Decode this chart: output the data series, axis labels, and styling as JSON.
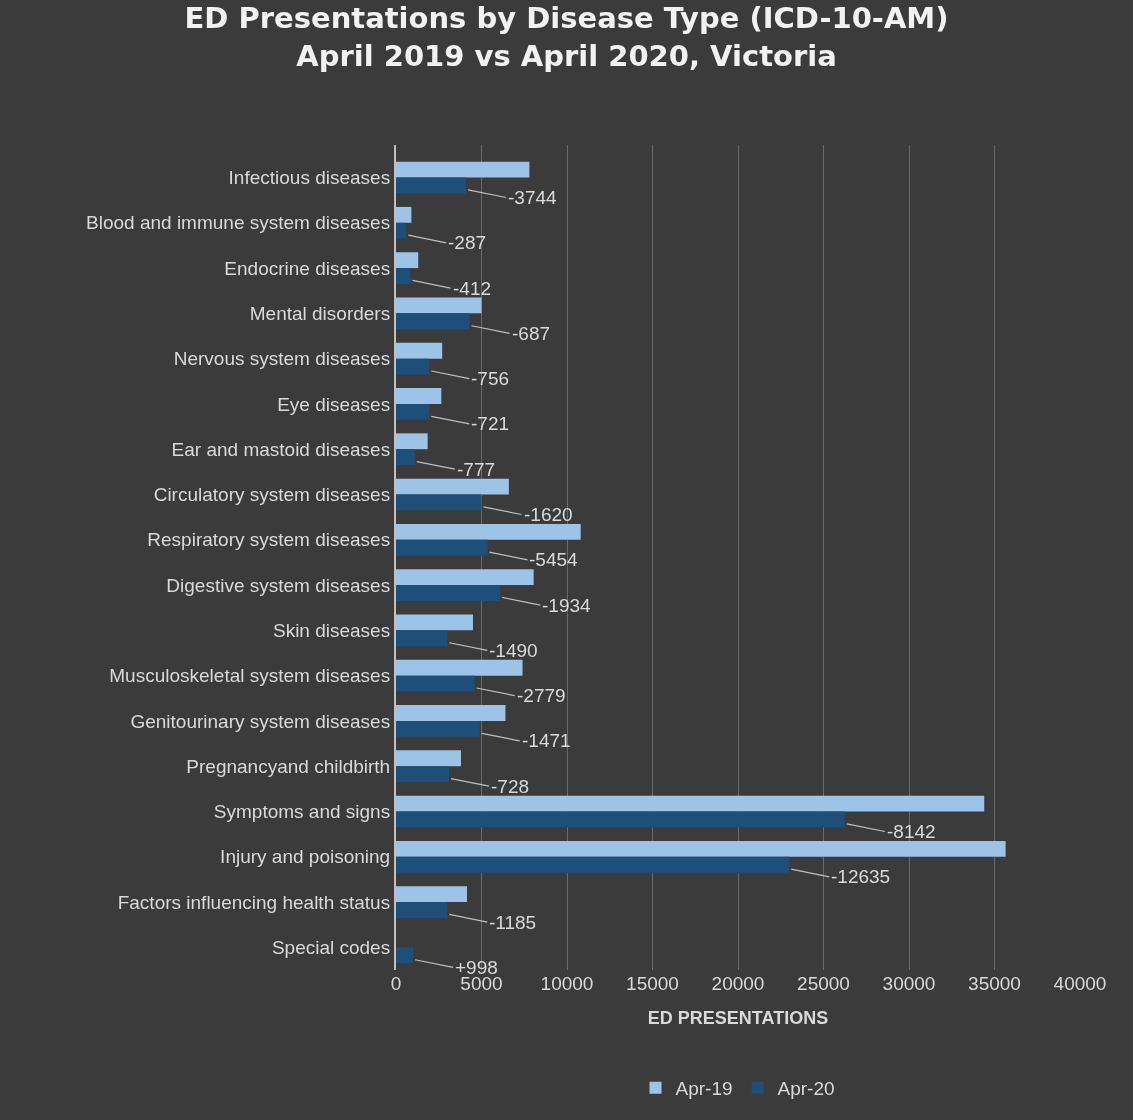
{
  "chart_data": {
    "type": "bar",
    "orientation": "horizontal",
    "title": "ED Presentations by Disease Type (ICD-10-AM)\nApril 2019 vs April 2020, Victoria",
    "xlabel": "ED PRESENTATIONS",
    "categories": [
      "Infectious diseases",
      "Blood and immune system diseases",
      "Endocrine diseases",
      "Mental disorders",
      "Nervous system diseases",
      "Eye diseases",
      "Ear and mastoid diseases",
      "Circulatory system diseases",
      "Respiratory system diseases",
      "Digestive system diseases",
      "Skin diseases",
      "Musculoskeletal system diseases",
      "Genitourinary system diseases",
      "Pregnancyand childbirth",
      "Symptoms and signs",
      "Injury and poisoning",
      "Factors influencing health status",
      "Special codes"
    ],
    "series": [
      {
        "name": "Apr-19",
        "color": "#9dc3e6",
        "values": [
          7800,
          900,
          1300,
          5000,
          2700,
          2650,
          1850,
          6600,
          10800,
          8050,
          4500,
          7400,
          6400,
          3800,
          34400,
          35650,
          4150,
          0
        ]
      },
      {
        "name": "Apr-20",
        "color": "#1f4e79",
        "values": [
          4100,
          600,
          850,
          4300,
          1950,
          1950,
          1100,
          5000,
          5350,
          6100,
          3000,
          4600,
          4900,
          3100,
          26250,
          23000,
          3000,
          1000
        ]
      }
    ],
    "annotations": [
      {
        "text": "-3744",
        "x": 4100,
        "y": "Infectious diseases"
      },
      {
        "text": "-287",
        "x": 600,
        "y": "Blood and immune system diseases"
      },
      {
        "text": "-412",
        "x": 850,
        "y": "Endocrine diseases"
      },
      {
        "text": "-687",
        "x": 4300,
        "y": "Mental disorders"
      },
      {
        "text": "-756",
        "x": 1950,
        "y": "Nervous system diseases"
      },
      {
        "text": "-721",
        "x": 1950,
        "y": "Eye diseases"
      },
      {
        "text": "-777",
        "x": 1100,
        "y": "Ear and mastoid diseases"
      },
      {
        "text": "-1620",
        "x": 5000,
        "y": "Circulatory system diseases"
      },
      {
        "text": "-5454",
        "x": 5350,
        "y": "Respiratory system diseases"
      },
      {
        "text": "-1934",
        "x": 6100,
        "y": "Digestive system diseases"
      },
      {
        "text": "-1490",
        "x": 3000,
        "y": "Skin diseases"
      },
      {
        "text": "-2779",
        "x": 4600,
        "y": "Musculoskeletal system diseases"
      },
      {
        "text": "-1471",
        "x": 4900,
        "y": "Genitourinary system diseases"
      },
      {
        "text": "-728",
        "x": 3100,
        "y": "Pregnancyand childbirth"
      },
      {
        "text": "-8142",
        "x": 26250,
        "y": "Symptoms and signs"
      },
      {
        "text": "-12635",
        "x": 23000,
        "y": "Injury and poisoning"
      },
      {
        "text": "-1185",
        "x": 3000,
        "y": "Factors influencing health status"
      },
      {
        "text": "+998",
        "x": 1000,
        "y": "Special codes"
      }
    ],
    "xlim": [
      0,
      40000
    ],
    "xticks": [
      0,
      5000,
      10000,
      15000,
      20000,
      25000,
      30000,
      35000,
      40000
    ],
    "grid": "x",
    "legend": "bottom"
  }
}
